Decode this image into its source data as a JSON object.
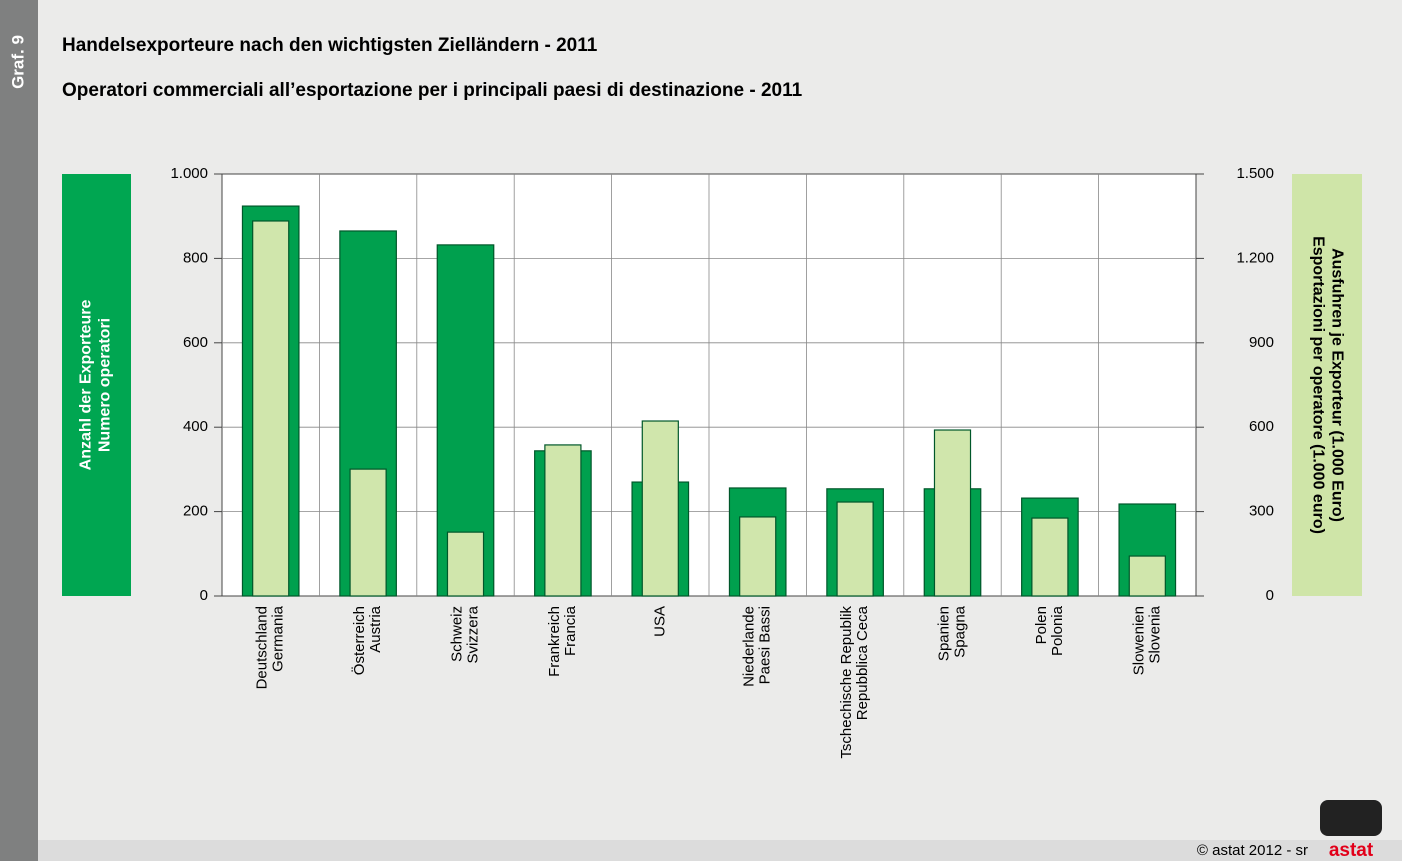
{
  "graf_label": "Graf. 9",
  "footer": "© astat 2012 - sr",
  "logo": "astat",
  "chart_data": {
    "type": "bar",
    "title": "Handelsexporteure nach den wichtigsten Zielländern - 2011",
    "subtitle": "Operatori commerciali all’esportazione per i principali paesi di destinazione - 2011",
    "ylabel": [
      "Anzahl der Exporteure",
      "Numero operatori"
    ],
    "y2label": [
      "Ausfuhren je Exporteur (1.000 Euro)",
      "Esportazioni per operatore (1.000 euro)"
    ],
    "categories": [
      [
        "Deutschland",
        "Germania"
      ],
      [
        "Österreich",
        "Austria"
      ],
      [
        "Schweiz",
        "Svizzera"
      ],
      [
        "Frankreich",
        "Francia"
      ],
      [
        "USA"
      ],
      [
        "Niederlande",
        "Paesi Bassi"
      ],
      [
        "Tschechische Republik",
        "Repubblica Ceca"
      ],
      [
        "Spanien",
        "Spagna"
      ],
      [
        "Polen",
        "Polonia"
      ],
      [
        "Slowenien",
        "Slovenia"
      ]
    ],
    "series": [
      {
        "color": "#00a04e",
        "axis": "y",
        "values": [
          924,
          865,
          832,
          344,
          270,
          256,
          254,
          254,
          232,
          218
        ]
      },
      {
        "color": "#d0e6ac",
        "axis": "y2",
        "values": [
          1333,
          451,
          227,
          537,
          622,
          281,
          334,
          590,
          277,
          142
        ]
      }
    ],
    "ylim": [
      0,
      1000
    ],
    "yticks": [
      0,
      200,
      400,
      600,
      800,
      {
        "value": 1000,
        "label": "1.000"
      }
    ],
    "y2lim": [
      0,
      1500
    ],
    "y2ticks": [
      0,
      300,
      600,
      900,
      {
        "value": 1200,
        "label": "1.200"
      },
      {
        "value": 1500,
        "label": "1.500"
      }
    ],
    "grid": true
  }
}
